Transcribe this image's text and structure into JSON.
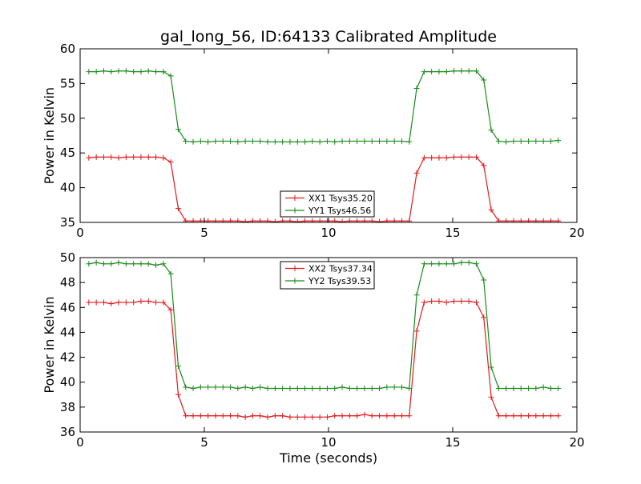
{
  "figure": {
    "title": "gal_long_56, ID:64133 Calibrated Amplitude",
    "xlabel": "Time (seconds)"
  },
  "colors": {
    "xx": "#e31a1c",
    "yy": "#1a8a1a",
    "axes": "#000000",
    "background": "#ffffff"
  },
  "chart_data": [
    {
      "type": "line",
      "ylabel": "Power in Kelvin",
      "xlim": [
        0,
        20
      ],
      "ylim": [
        35,
        60
      ],
      "xticks": [
        0,
        5,
        10,
        15,
        20
      ],
      "yticks": [
        35,
        40,
        45,
        50,
        55,
        60
      ],
      "grid": false,
      "legend_position": "lower-center",
      "marker": "+",
      "x": [
        0.35,
        0.65,
        0.95,
        1.25,
        1.55,
        1.85,
        2.15,
        2.45,
        2.75,
        3.05,
        3.35,
        3.65,
        3.95,
        4.25,
        4.55,
        4.85,
        5.15,
        5.45,
        5.75,
        6.05,
        6.35,
        6.65,
        6.95,
        7.25,
        7.55,
        7.85,
        8.15,
        8.45,
        8.75,
        9.05,
        9.35,
        9.65,
        9.95,
        10.25,
        10.55,
        10.85,
        11.15,
        11.45,
        11.75,
        12.05,
        12.35,
        12.65,
        12.95,
        13.25,
        13.55,
        13.85,
        14.15,
        14.45,
        14.75,
        15.05,
        15.35,
        15.65,
        15.95,
        16.25,
        16.55,
        16.85,
        17.15,
        17.45,
        17.75,
        18.05,
        18.35,
        18.65,
        18.95,
        19.25
      ],
      "series": [
        {
          "name": "XX1 Tsys35.20",
          "color_key": "xx",
          "y": [
            44.3,
            44.4,
            44.4,
            44.4,
            44.3,
            44.4,
            44.4,
            44.4,
            44.4,
            44.4,
            44.3,
            43.7,
            37.0,
            35.2,
            35.2,
            35.2,
            35.2,
            35.2,
            35.2,
            35.2,
            35.2,
            35.1,
            35.2,
            35.2,
            35.2,
            35.1,
            35.2,
            35.2,
            35.1,
            35.2,
            35.2,
            35.2,
            35.2,
            35.2,
            35.1,
            35.2,
            35.2,
            35.2,
            35.2,
            35.1,
            35.2,
            35.2,
            35.2,
            35.2,
            42.1,
            44.3,
            44.3,
            44.3,
            44.3,
            44.4,
            44.4,
            44.4,
            44.4,
            43.2,
            36.8,
            35.2,
            35.2,
            35.2,
            35.2,
            35.2,
            35.2,
            35.2,
            35.2,
            35.2
          ]
        },
        {
          "name": "YY1 Tsys46.56",
          "color_key": "yy",
          "y": [
            56.7,
            56.7,
            56.8,
            56.7,
            56.8,
            56.8,
            56.7,
            56.7,
            56.8,
            56.7,
            56.7,
            56.1,
            48.4,
            46.7,
            46.6,
            46.7,
            46.6,
            46.7,
            46.7,
            46.7,
            46.6,
            46.7,
            46.7,
            46.7,
            46.6,
            46.6,
            46.6,
            46.6,
            46.6,
            46.6,
            46.7,
            46.6,
            46.7,
            46.6,
            46.7,
            46.7,
            46.7,
            46.7,
            46.7,
            46.7,
            46.7,
            46.7,
            46.7,
            46.6,
            54.3,
            56.7,
            56.7,
            56.7,
            56.7,
            56.8,
            56.8,
            56.8,
            56.8,
            55.5,
            48.3,
            46.7,
            46.6,
            46.7,
            46.7,
            46.7,
            46.7,
            46.7,
            46.7,
            46.8
          ]
        }
      ]
    },
    {
      "type": "line",
      "ylabel": "Power in Kelvin",
      "xlim": [
        0,
        20
      ],
      "ylim": [
        36,
        50
      ],
      "xticks": [
        0,
        5,
        10,
        15,
        20
      ],
      "yticks": [
        36,
        38,
        40,
        42,
        44,
        46,
        48,
        50
      ],
      "grid": false,
      "legend_position": "upper-center",
      "marker": "+",
      "x": [
        0.35,
        0.65,
        0.95,
        1.25,
        1.55,
        1.85,
        2.15,
        2.45,
        2.75,
        3.05,
        3.35,
        3.65,
        3.95,
        4.25,
        4.55,
        4.85,
        5.15,
        5.45,
        5.75,
        6.05,
        6.35,
        6.65,
        6.95,
        7.25,
        7.55,
        7.85,
        8.15,
        8.45,
        8.75,
        9.05,
        9.35,
        9.65,
        9.95,
        10.25,
        10.55,
        10.85,
        11.15,
        11.45,
        11.75,
        12.05,
        12.35,
        12.65,
        12.95,
        13.25,
        13.55,
        13.85,
        14.15,
        14.45,
        14.75,
        15.05,
        15.35,
        15.65,
        15.95,
        16.25,
        16.55,
        16.85,
        17.15,
        17.45,
        17.75,
        18.05,
        18.35,
        18.65,
        18.95,
        19.25
      ],
      "series": [
        {
          "name": "XX2 Tsys37.34",
          "color_key": "xx",
          "y": [
            46.4,
            46.4,
            46.4,
            46.3,
            46.4,
            46.4,
            46.4,
            46.5,
            46.5,
            46.4,
            46.4,
            45.8,
            39.0,
            37.3,
            37.3,
            37.3,
            37.3,
            37.3,
            37.3,
            37.3,
            37.3,
            37.2,
            37.3,
            37.3,
            37.2,
            37.3,
            37.3,
            37.2,
            37.2,
            37.2,
            37.2,
            37.2,
            37.2,
            37.3,
            37.3,
            37.3,
            37.3,
            37.4,
            37.3,
            37.3,
            37.3,
            37.3,
            37.3,
            37.3,
            44.1,
            46.4,
            46.5,
            46.5,
            46.4,
            46.5,
            46.5,
            46.5,
            46.4,
            45.2,
            38.8,
            37.3,
            37.3,
            37.3,
            37.3,
            37.3,
            37.3,
            37.3,
            37.3,
            37.3
          ]
        },
        {
          "name": "YY2 Tsys39.53",
          "color_key": "yy",
          "y": [
            49.5,
            49.6,
            49.5,
            49.5,
            49.6,
            49.5,
            49.5,
            49.5,
            49.5,
            49.4,
            49.5,
            48.7,
            41.3,
            39.6,
            39.5,
            39.6,
            39.6,
            39.6,
            39.6,
            39.6,
            39.5,
            39.6,
            39.5,
            39.6,
            39.5,
            39.5,
            39.5,
            39.5,
            39.5,
            39.5,
            39.5,
            39.5,
            39.5,
            39.5,
            39.6,
            39.5,
            39.5,
            39.5,
            39.5,
            39.5,
            39.6,
            39.6,
            39.6,
            39.5,
            47.0,
            49.5,
            49.5,
            49.5,
            49.5,
            49.5,
            49.6,
            49.6,
            49.5,
            48.2,
            41.2,
            39.5,
            39.5,
            39.5,
            39.5,
            39.5,
            39.5,
            39.6,
            39.5,
            39.5
          ]
        }
      ]
    }
  ]
}
